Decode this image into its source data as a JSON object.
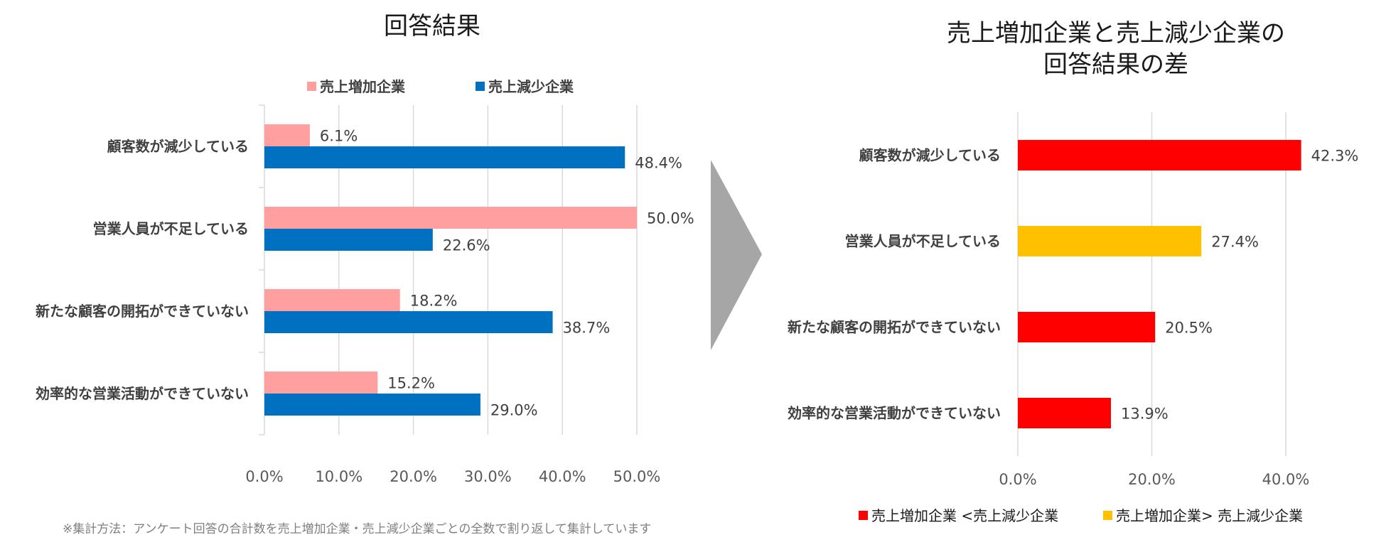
{
  "chart_data": [
    {
      "type": "bar",
      "orientation": "horizontal",
      "title": "回答結果",
      "categories": [
        "顧客数が減少している",
        "営業人員が不足している",
        "新たな顧客の開拓ができていない",
        "効率的な営業活動ができていない"
      ],
      "series": [
        {
          "name": "売上増加企業",
          "color": "#ff9f9f",
          "values": [
            6.1,
            50.0,
            18.2,
            15.2
          ],
          "labels": [
            "6.1%",
            "50.0%",
            "18.2%",
            "15.2%"
          ]
        },
        {
          "name": "売上減少企業",
          "color": "#0070c0",
          "values": [
            48.4,
            22.6,
            38.7,
            29.0
          ],
          "labels": [
            "48.4%",
            "22.6%",
            "38.7%",
            "29.0%"
          ]
        }
      ],
      "xlim": [
        0,
        50
      ],
      "ticks": [
        "0.0%",
        "10.0%",
        "20.0%",
        "30.0%",
        "40.0%",
        "50.0%"
      ],
      "grid": true,
      "legend": "top"
    },
    {
      "type": "bar",
      "orientation": "horizontal",
      "title_lines": [
        "売上増加企業と売上減少企業の",
        "回答結果の差"
      ],
      "categories": [
        "顧客数が減少している",
        "営業人員が不足している",
        "新たな顧客の開拓ができていない",
        "効率的な営業活動ができていない"
      ],
      "values": [
        42.3,
        27.4,
        20.5,
        13.9
      ],
      "labels": [
        "42.3%",
        "27.4%",
        "20.5%",
        "13.9%"
      ],
      "bar_groups": [
        0,
        1,
        0,
        0
      ],
      "groups": [
        {
          "name": "売上増加企業 <売上減少企業",
          "color": "#ff0000"
        },
        {
          "name": "売上増加企業> 売上減少企業",
          "color": "#ffc000"
        }
      ],
      "xlim": [
        0,
        45
      ],
      "ticks": [
        "0.0%",
        "20.0%",
        "40.0%"
      ],
      "tick_values": [
        0,
        20,
        40
      ],
      "grid": true,
      "legend": "bottom"
    }
  ],
  "arrow": {
    "color": "#a6a6a6"
  },
  "footnote": "※集計方法：アンケート回答の合計数を売上増加企業・売上減少企業ごとの全数で割り返して集計しています"
}
